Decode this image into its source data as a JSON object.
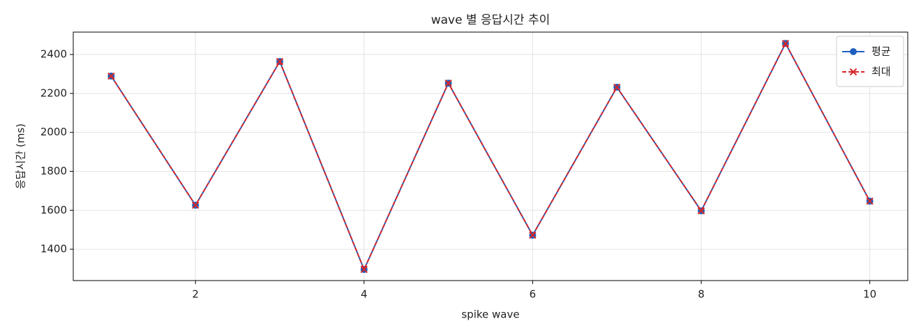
{
  "chart_data": {
    "type": "line",
    "title": "wave 별 응답시간 추이",
    "x_label": "spike wave",
    "y_label": "응답시간 (ms)",
    "x": [
      1,
      2,
      3,
      4,
      5,
      6,
      7,
      8,
      9,
      10
    ],
    "series": [
      {
        "name": "평균",
        "color": "#1f5fbf",
        "marker": "circle",
        "linestyle": "solid",
        "values": [
          2289,
          1626,
          2364,
          1296,
          2253,
          1472,
          2232,
          1597,
          2457,
          1647
        ]
      },
      {
        "name": "최대",
        "color": "#d62728",
        "marker": "x",
        "linestyle": "dashed",
        "values": [
          2289,
          1626,
          2364,
          1296,
          2253,
          1472,
          2232,
          1597,
          2457,
          1647
        ]
      }
    ],
    "xlim": [
      0.55,
      10.45
    ],
    "xticks": [
      2,
      4,
      6,
      8,
      10
    ],
    "ylim": [
      1239,
      2515
    ],
    "yticks": [
      1400,
      1600,
      1800,
      2000,
      2200,
      2400
    ],
    "grid": true,
    "legend": "upper right"
  }
}
